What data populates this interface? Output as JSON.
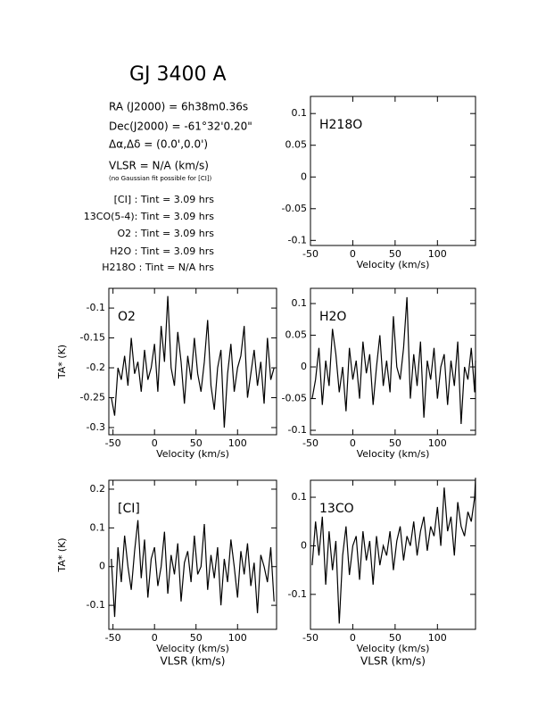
{
  "header": {
    "title": "GJ 3400 A",
    "info": [
      "RA (J2000) = 6h38m0.36s",
      "Dec(J2000) = -61°32'0.20\"",
      "Δα,Δδ = (0.0',0.0')",
      "VLSR = N/A (km/s)"
    ],
    "note": "(no Gaussian fit possible for [CI])",
    "times": [
      "[CI] : Tint = 3.09 hrs",
      "13CO(5-4): Tint = 3.09 hrs",
      "O2 : Tint = 3.09 hrs",
      "H2O : Tint = 3.09 hrs",
      "H218O : Tint = N/A hrs"
    ]
  },
  "chart_data": [
    {
      "type": "line",
      "title": "H218O",
      "xlabel": "Velocity (km/s)",
      "xlim": [
        -50,
        145
      ],
      "xticks": [
        -50,
        0,
        50,
        100
      ],
      "ylim": [
        -0.108,
        0.127
      ],
      "yticks": [
        -0.1,
        -0.05,
        0,
        0.05,
        0.1
      ],
      "x": [],
      "series": []
    },
    {
      "type": "line",
      "title": "O2",
      "xlabel": "Velocity (km/s)",
      "ylabel": "TA* (K)",
      "xlim": [
        -55,
        147
      ],
      "xticks": [
        -50,
        0,
        50,
        100
      ],
      "ylim": [
        -0.312,
        -0.067
      ],
      "yticks": [
        -0.3,
        -0.25,
        -0.2,
        -0.15,
        -0.1
      ],
      "x": [
        -52,
        -48,
        -44,
        -40,
        -36,
        -32,
        -28,
        -24,
        -20,
        -16,
        -12,
        -8,
        -4,
        0,
        4,
        8,
        12,
        16,
        20,
        24,
        28,
        32,
        36,
        40,
        44,
        48,
        52,
        56,
        60,
        64,
        68,
        72,
        76,
        80,
        84,
        88,
        92,
        96,
        100,
        104,
        108,
        112,
        116,
        120,
        124,
        128,
        132,
        136,
        140,
        144
      ],
      "series": [
        {
          "color": "#000000",
          "values": [
            -0.25,
            -0.28,
            -0.2,
            -0.22,
            -0.18,
            -0.23,
            -0.15,
            -0.21,
            -0.19,
            -0.24,
            -0.17,
            -0.22,
            -0.2,
            -0.16,
            -0.24,
            -0.13,
            -0.19,
            -0.08,
            -0.2,
            -0.23,
            -0.14,
            -0.19,
            -0.26,
            -0.18,
            -0.22,
            -0.15,
            -0.21,
            -0.24,
            -0.19,
            -0.12,
            -0.23,
            -0.27,
            -0.2,
            -0.17,
            -0.3,
            -0.21,
            -0.16,
            -0.24,
            -0.2,
            -0.18,
            -0.13,
            -0.25,
            -0.21,
            -0.17,
            -0.23,
            -0.19,
            -0.26,
            -0.15,
            -0.22,
            -0.2
          ]
        }
      ]
    },
    {
      "type": "line",
      "title": "H2O",
      "xlabel": "Velocity (km/s)",
      "xlim": [
        -50,
        145
      ],
      "xticks": [
        -50,
        0,
        50,
        100
      ],
      "ylim": [
        -0.107,
        0.124
      ],
      "yticks": [
        -0.1,
        -0.05,
        0,
        0.05,
        0.1
      ],
      "x": [
        -48,
        -44,
        -40,
        -36,
        -32,
        -28,
        -24,
        -20,
        -16,
        -12,
        -8,
        -4,
        0,
        4,
        8,
        12,
        16,
        20,
        24,
        28,
        32,
        36,
        40,
        44,
        48,
        52,
        56,
        60,
        64,
        68,
        72,
        76,
        80,
        84,
        88,
        92,
        96,
        100,
        104,
        108,
        112,
        116,
        120,
        124,
        128,
        132,
        136,
        140,
        144,
        145
      ],
      "series": [
        {
          "color": "#000000",
          "values": [
            -0.05,
            -0.02,
            0.03,
            -0.06,
            0.01,
            -0.03,
            0.06,
            0.02,
            -0.04,
            0.0,
            -0.07,
            0.03,
            -0.02,
            0.01,
            -0.05,
            0.04,
            -0.01,
            0.02,
            -0.06,
            0.0,
            0.05,
            -0.03,
            0.01,
            -0.04,
            0.08,
            0.0,
            -0.02,
            0.03,
            0.11,
            -0.05,
            0.02,
            -0.03,
            0.04,
            -0.08,
            0.01,
            -0.02,
            0.03,
            -0.05,
            0.0,
            0.02,
            -0.06,
            0.01,
            -0.03,
            0.04,
            -0.09,
            0.0,
            -0.02,
            0.03,
            -0.04,
            0.01
          ]
        }
      ]
    },
    {
      "type": "line",
      "title": "[CI]",
      "xlabel": "Velocity (km/s)",
      "ylabel": "TA* (K)",
      "sublabel": "VLSR (km/s)",
      "xlim": [
        -55,
        147
      ],
      "xticks": [
        -50,
        0,
        50,
        100
      ],
      "ylim": [
        -0.162,
        0.223
      ],
      "yticks": [
        -0.1,
        0,
        0.1,
        0.2
      ],
      "x": [
        -52,
        -48,
        -44,
        -40,
        -36,
        -32,
        -28,
        -24,
        -20,
        -16,
        -12,
        -8,
        -4,
        0,
        4,
        8,
        12,
        16,
        20,
        24,
        28,
        32,
        36,
        40,
        44,
        48,
        52,
        56,
        60,
        64,
        68,
        72,
        76,
        80,
        84,
        88,
        92,
        96,
        100,
        104,
        108,
        112,
        116,
        120,
        124,
        128,
        132,
        136,
        140,
        144
      ],
      "series": [
        {
          "color": "#000000",
          "values": [
            0.02,
            -0.13,
            0.05,
            -0.04,
            0.08,
            0.0,
            -0.06,
            0.04,
            0.12,
            -0.03,
            0.07,
            -0.08,
            0.02,
            0.05,
            -0.05,
            0.0,
            0.09,
            -0.07,
            0.03,
            -0.02,
            0.06,
            -0.09,
            0.01,
            0.04,
            -0.04,
            0.08,
            -0.02,
            0.0,
            0.11,
            -0.06,
            0.03,
            -0.03,
            0.05,
            -0.1,
            0.02,
            -0.04,
            0.07,
            0.0,
            -0.08,
            0.04,
            -0.02,
            0.06,
            -0.05,
            0.01,
            -0.12,
            0.03,
            0.0,
            -0.04,
            0.05,
            -0.09
          ]
        }
      ]
    },
    {
      "type": "line",
      "title": "13CO",
      "xlabel": "Velocity (km/s)",
      "sublabel": "VLSR (km/s)",
      "xlim": [
        -50,
        145
      ],
      "xticks": [
        -50,
        0,
        50,
        100
      ],
      "ylim": [
        -0.172,
        0.135
      ],
      "yticks": [
        -0.1,
        0,
        0.1
      ],
      "x": [
        -48,
        -44,
        -40,
        -36,
        -32,
        -28,
        -24,
        -20,
        -16,
        -12,
        -8,
        -4,
        0,
        4,
        8,
        12,
        16,
        20,
        24,
        28,
        32,
        36,
        40,
        44,
        48,
        52,
        56,
        60,
        64,
        68,
        72,
        76,
        80,
        84,
        88,
        92,
        96,
        100,
        104,
        108,
        112,
        116,
        120,
        124,
        128,
        132,
        136,
        140,
        144,
        145
      ],
      "series": [
        {
          "color": "#000000",
          "values": [
            -0.04,
            0.05,
            -0.02,
            0.06,
            -0.08,
            0.03,
            -0.05,
            0.01,
            -0.16,
            -0.02,
            0.04,
            -0.06,
            0.0,
            0.02,
            -0.07,
            0.03,
            -0.03,
            0.01,
            -0.08,
            0.02,
            -0.04,
            0.0,
            -0.02,
            0.03,
            -0.05,
            0.01,
            0.04,
            -0.03,
            0.02,
            0.0,
            0.05,
            -0.02,
            0.03,
            0.06,
            -0.01,
            0.04,
            0.02,
            0.08,
            0.0,
            0.12,
            0.03,
            0.06,
            -0.02,
            0.09,
            0.04,
            0.02,
            0.07,
            0.05,
            0.1,
            0.14
          ]
        }
      ]
    }
  ]
}
